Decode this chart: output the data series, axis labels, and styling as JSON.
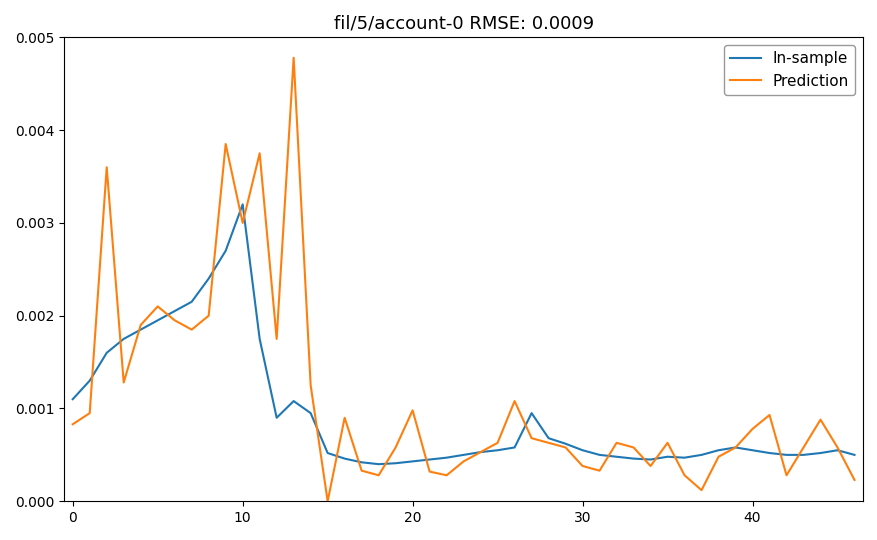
{
  "title": "fil/5/account-0 RMSE: 0.0009",
  "in_sample_color": "#1f77b4",
  "prediction_color": "#ff7f0e",
  "legend_labels": [
    "In-sample",
    "Prediction"
  ],
  "ylim": [
    0,
    0.005
  ],
  "xlim": [
    -0.5,
    46.5
  ],
  "figsize": [
    8.78,
    5.4
  ],
  "dpi": 100,
  "x": [
    0,
    1,
    2,
    3,
    4,
    5,
    6,
    7,
    8,
    9,
    10,
    11,
    12,
    13,
    14,
    15,
    16,
    17,
    18,
    19,
    20,
    21,
    22,
    23,
    24,
    25,
    26,
    27,
    28,
    29,
    30,
    31,
    32,
    33,
    34,
    35,
    36,
    37,
    38,
    39,
    40,
    41,
    42,
    43,
    44,
    45,
    46
  ],
  "in_sample": [
    0.0011,
    0.0013,
    0.0016,
    0.00175,
    0.00185,
    0.00195,
    0.00205,
    0.00215,
    0.0024,
    0.0027,
    0.0032,
    0.00175,
    0.0009,
    0.00108,
    0.00095,
    0.00052,
    0.00046,
    0.00042,
    0.0004,
    0.00041,
    0.00043,
    0.00045,
    0.00047,
    0.0005,
    0.00053,
    0.00055,
    0.00058,
    0.00095,
    0.00068,
    0.00062,
    0.00055,
    0.0005,
    0.00048,
    0.00046,
    0.00045,
    0.00048,
    0.00047,
    0.0005,
    0.00055,
    0.00058,
    0.00055,
    0.00052,
    0.0005,
    0.0005,
    0.00052,
    0.00055,
    0.0005
  ],
  "prediction": [
    0.00083,
    0.00095,
    0.0036,
    0.00128,
    0.0019,
    0.0021,
    0.00195,
    0.00185,
    0.002,
    0.00385,
    0.003,
    0.00375,
    0.00175,
    0.00478,
    0.00125,
    0.0,
    0.0009,
    0.00033,
    0.00028,
    0.00058,
    0.00098,
    0.00032,
    0.00028,
    0.00043,
    0.00053,
    0.00063,
    0.00108,
    0.00068,
    0.00063,
    0.00058,
    0.00038,
    0.00033,
    0.00063,
    0.00058,
    0.00038,
    0.00063,
    0.00028,
    0.00012,
    0.00048,
    0.00058,
    0.00078,
    0.00093,
    0.00028,
    0.00058,
    0.00088,
    0.00058,
    0.00023
  ]
}
